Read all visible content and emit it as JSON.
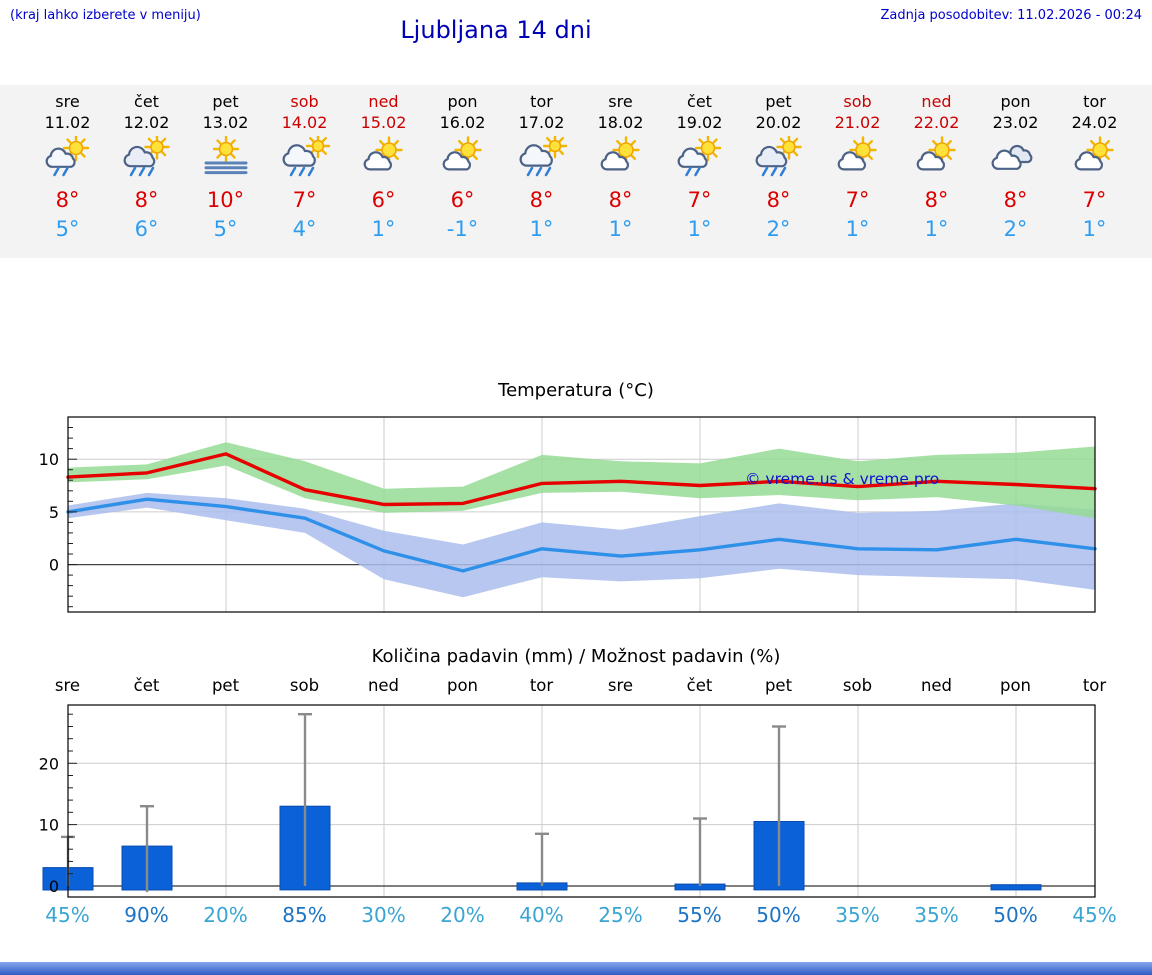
{
  "header": {
    "note_left": "(kraj lahko izberete v meniju)",
    "title": "Ljubljana 14 dni",
    "last_update": "Zadnja posodobitev: 11.02.2026 - 00:24"
  },
  "colors": {
    "header_blue": "#0000cc",
    "weekend_red": "#cc0000",
    "temp_high_red": "#dd0000",
    "temp_low_blue": "#2e9df0",
    "strip_bg": "#f3f3f3",
    "bar_blue": "#0b62d8",
    "pct_light": "#3aa5d2",
    "pct_dark": "#1c74c4",
    "temp_line_red": "#e60000",
    "temp_band_green": "#95db95",
    "temp_line_blue": "#2e90e8",
    "temp_band_blue": "#aabdec"
  },
  "days": [
    {
      "name": "sre",
      "date": "11.02",
      "weekend": false,
      "icon": "sun-cloud-showers",
      "high": "8°",
      "low": "5°"
    },
    {
      "name": "čet",
      "date": "12.02",
      "weekend": false,
      "icon": "sun-cloud-rain",
      "high": "8°",
      "low": "6°"
    },
    {
      "name": "pet",
      "date": "13.02",
      "weekend": false,
      "icon": "sun-fog",
      "high": "10°",
      "low": "5°"
    },
    {
      "name": "sob",
      "date": "14.02",
      "weekend": true,
      "icon": "cloud-rain",
      "high": "7°",
      "low": "4°"
    },
    {
      "name": "ned",
      "date": "15.02",
      "weekend": true,
      "icon": "sun-cloud",
      "high": "6°",
      "low": "1°"
    },
    {
      "name": "pon",
      "date": "16.02",
      "weekend": false,
      "icon": "sun-cloud",
      "high": "6°",
      "low": "-1°"
    },
    {
      "name": "tor",
      "date": "17.02",
      "weekend": false,
      "icon": "cloud-rain",
      "high": "8°",
      "low": "1°"
    },
    {
      "name": "sre",
      "date": "18.02",
      "weekend": false,
      "icon": "sun-cloud",
      "high": "8°",
      "low": "1°"
    },
    {
      "name": "čet",
      "date": "19.02",
      "weekend": false,
      "icon": "sun-cloud-showers",
      "high": "7°",
      "low": "1°"
    },
    {
      "name": "pet",
      "date": "20.02",
      "weekend": false,
      "icon": "sun-cloud-rain",
      "high": "8°",
      "low": "2°"
    },
    {
      "name": "sob",
      "date": "21.02",
      "weekend": true,
      "icon": "sun-cloud",
      "high": "7°",
      "low": "1°"
    },
    {
      "name": "ned",
      "date": "22.02",
      "weekend": true,
      "icon": "sun-cloud",
      "high": "8°",
      "low": "1°"
    },
    {
      "name": "pon",
      "date": "23.02",
      "weekend": false,
      "icon": "clouds",
      "high": "8°",
      "low": "2°"
    },
    {
      "name": "tor",
      "date": "24.02",
      "weekend": false,
      "icon": "sun-cloud",
      "high": "7°",
      "low": "1°"
    }
  ],
  "chart_data": [
    {
      "type": "line",
      "title": "Temperatura (°C)",
      "x_labels": [
        "11.02",
        "12.02",
        "13.02",
        "14.02",
        "15.02",
        "16.02",
        "17.02",
        "18.02",
        "19.02",
        "20.02",
        "21.02",
        "22.02",
        "23.02",
        "24.02"
      ],
      "ylim": [
        -4.5,
        14
      ],
      "yticks": [
        0,
        5,
        10
      ],
      "grid": true,
      "watermark": "© vreme.us & vreme.pro",
      "bands": [
        {
          "name": "min_band",
          "color": "#aabdec",
          "upper": [
            5.6,
            6.8,
            6.3,
            5.3,
            3.2,
            1.9,
            4.0,
            3.3,
            4.6,
            5.8,
            4.9,
            5.1,
            5.8,
            5.2
          ],
          "lower": [
            4.4,
            5.4,
            4.2,
            3.0,
            -1.4,
            -3.1,
            -1.2,
            -1.6,
            -1.3,
            -0.4,
            -1.0,
            -1.2,
            -1.4,
            -2.4
          ]
        },
        {
          "name": "max_band",
          "color": "#95db95",
          "upper": [
            9.2,
            9.5,
            11.6,
            9.8,
            7.2,
            7.4,
            10.4,
            9.8,
            9.6,
            11.0,
            9.8,
            10.4,
            10.6,
            11.2
          ],
          "lower": [
            7.8,
            8.1,
            9.4,
            6.3,
            4.9,
            5.1,
            6.8,
            6.9,
            6.3,
            6.6,
            6.1,
            6.4,
            5.6,
            4.4
          ]
        }
      ],
      "series": [
        {
          "name": "min_line",
          "color": "#2e90e8",
          "values": [
            5.0,
            6.2,
            5.5,
            4.4,
            1.3,
            -0.6,
            1.5,
            0.8,
            1.4,
            2.4,
            1.5,
            1.4,
            2.4,
            1.5
          ]
        },
        {
          "name": "max_line",
          "color": "#e60000",
          "values": [
            8.3,
            8.7,
            10.5,
            7.1,
            5.7,
            5.8,
            7.7,
            7.9,
            7.5,
            7.9,
            7.4,
            7.9,
            7.6,
            7.2
          ]
        }
      ]
    },
    {
      "type": "bar",
      "title": "Količina padavin (mm) / Možnost padavin (%)",
      "categories": [
        "sre",
        "čet",
        "pet",
        "sob",
        "ned",
        "pon",
        "tor",
        "sre",
        "čet",
        "pet",
        "sob",
        "ned",
        "pon",
        "tor"
      ],
      "ylim": [
        -1.8,
        29.5
      ],
      "yticks": [
        0,
        10,
        20
      ],
      "bar_color": "#0b62d8",
      "values_mm": [
        3,
        6.5,
        0,
        13,
        0,
        0,
        0.5,
        0,
        0.3,
        10.5,
        0,
        0,
        0.2,
        0
      ],
      "whisker_max_mm": [
        8,
        13,
        0,
        28,
        0,
        0,
        8.5,
        0,
        11,
        26,
        0,
        0,
        0,
        0
      ],
      "whisker_min_mm": [
        0,
        -1,
        0,
        0,
        0,
        0,
        0,
        0,
        0,
        0,
        0,
        0,
        0,
        0
      ],
      "probability_pct": [
        45,
        90,
        20,
        85,
        30,
        20,
        40,
        25,
        55,
        50,
        35,
        35,
        50,
        45
      ]
    }
  ]
}
